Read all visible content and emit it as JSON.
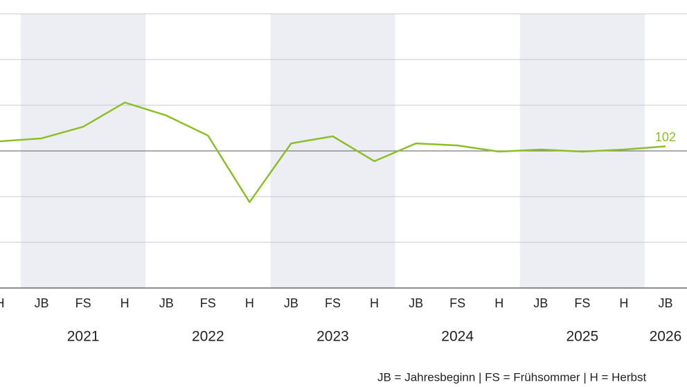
{
  "chart_data": {
    "type": "line",
    "categories": [
      "H",
      "JB",
      "FS",
      "H",
      "JB",
      "FS",
      "H",
      "JB",
      "FS",
      "H",
      "JB",
      "FS",
      "H",
      "JB",
      "FS",
      "H",
      "JB"
    ],
    "years": [
      "2021",
      "2022",
      "2023",
      "2024",
      "2025",
      "2026"
    ],
    "series": [
      {
        "color": "#8cbf26",
        "values": [
          104.2,
          105.5,
          110.6,
          121.2,
          115.5,
          106.7,
          77.6,
          103.3,
          106.4,
          95.5,
          103.3,
          102.4,
          99.7,
          100.6,
          99.7,
          100.6,
          102
        ]
      }
    ],
    "ylim": [
      40,
      160
    ],
    "yticks": [
      40,
      60,
      80,
      100,
      120,
      140,
      160
    ],
    "baseline": 100,
    "grid": true,
    "footnote": "JB = Jahresbeginn | FS = Frühsommer | H = Herbst"
  }
}
